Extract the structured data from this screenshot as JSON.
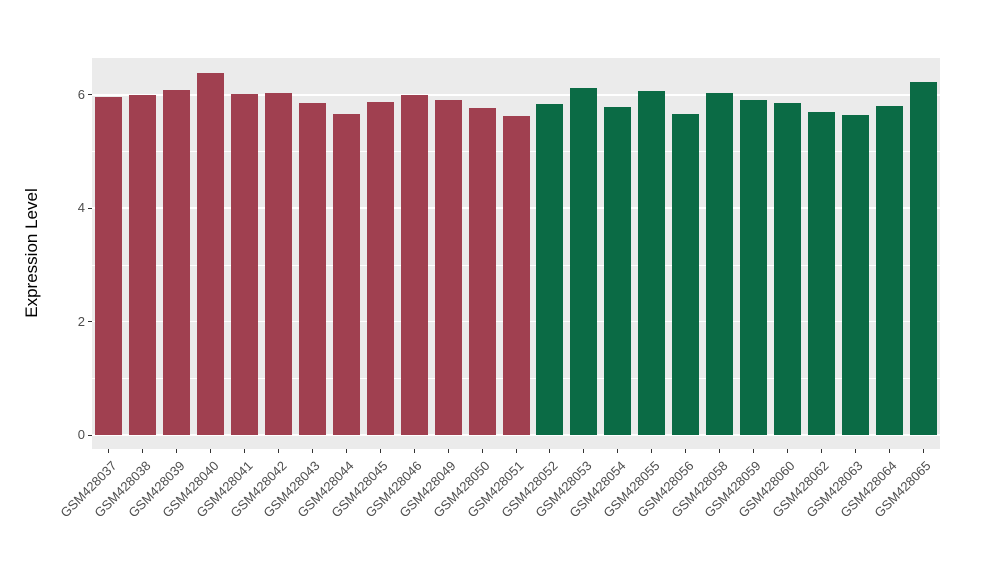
{
  "figure": {
    "background": "#FFFFFF",
    "panel_background": "#EBEBEB",
    "grid_color": "#FFFFFF",
    "tick_color": "#333333",
    "axis_text_color": "#4D4D4D"
  },
  "chart_data": {
    "type": "bar",
    "title": "",
    "xlabel": "",
    "ylabel": "Expression Level",
    "categories": [
      "GSM428037",
      "GSM428038",
      "GSM428039",
      "GSM428040",
      "GSM428041",
      "GSM428042",
      "GSM428043",
      "GSM428044",
      "GSM428045",
      "GSM428046",
      "GSM428049",
      "GSM428050",
      "GSM428051",
      "GSM428052",
      "GSM428053",
      "GSM428054",
      "GSM428055",
      "GSM428056",
      "GSM428058",
      "GSM428059",
      "GSM428060",
      "GSM428062",
      "GSM428063",
      "GSM428064",
      "GSM428065"
    ],
    "values": [
      5.97,
      5.99,
      6.08,
      6.38,
      6.02,
      6.03,
      5.85,
      5.67,
      5.88,
      6.0,
      5.9,
      5.77,
      5.62,
      5.83,
      6.12,
      5.79,
      6.06,
      5.67,
      6.04,
      5.9,
      5.86,
      5.69,
      5.65,
      5.81,
      6.22
    ],
    "group_index": [
      0,
      0,
      0,
      0,
      0,
      0,
      0,
      0,
      0,
      0,
      0,
      0,
      0,
      1,
      1,
      1,
      1,
      1,
      1,
      1,
      1,
      1,
      1,
      1,
      1
    ],
    "group_colors": [
      "#A04050",
      "#0B6B45"
    ],
    "ylim": [
      0,
      6.65
    ],
    "yticks": [
      0,
      2,
      4,
      6
    ],
    "yticks_minor": [
      1,
      3,
      5
    ],
    "grid": "on",
    "legend": "none",
    "bar_width_fraction": 0.8
  }
}
